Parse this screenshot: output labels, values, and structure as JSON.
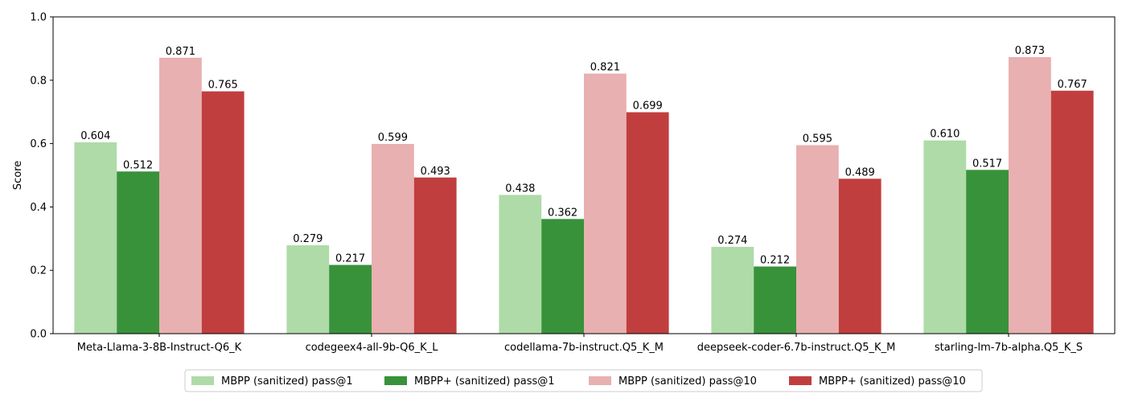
{
  "chart_data": {
    "type": "bar",
    "title": "",
    "xlabel": "",
    "ylabel": "Score",
    "ylim": [
      0,
      1.0
    ],
    "yticks": [
      "0.0",
      "0.2",
      "0.4",
      "0.6",
      "0.8",
      "1.0"
    ],
    "grid": false,
    "legend_position": "bottom-center",
    "categories": [
      "Meta-Llama-3-8B-Instruct-Q6_K",
      "codegeex4-all-9b-Q6_K_L",
      "codellama-7b-instruct.Q5_K_M",
      "deepseek-coder-6.7b-instruct.Q5_K_M",
      "starling-lm-7b-alpha.Q5_K_S"
    ],
    "series": [
      {
        "name": "MBPP (sanitized) pass@1",
        "color": "#aedba7",
        "values": [
          0.604,
          0.279,
          0.438,
          0.274,
          0.61
        ],
        "labels": [
          "0.604",
          "0.279",
          "0.438",
          "0.274",
          "0.610"
        ]
      },
      {
        "name": "MBPP+ (sanitized) pass@1",
        "color": "#38923a",
        "values": [
          0.512,
          0.217,
          0.362,
          0.212,
          0.517
        ],
        "labels": [
          "0.512",
          "0.217",
          "0.362",
          "0.212",
          "0.517"
        ]
      },
      {
        "name": "MBPP (sanitized) pass@10",
        "color": "#e8b0b0",
        "values": [
          0.871,
          0.599,
          0.821,
          0.595,
          0.873
        ],
        "labels": [
          "0.871",
          "0.599",
          "0.821",
          "0.595",
          "0.873"
        ]
      },
      {
        "name": "MBPP+ (sanitized) pass@10",
        "color": "#c13e3e",
        "values": [
          0.765,
          0.493,
          0.699,
          0.489,
          0.767
        ],
        "labels": [
          "0.765",
          "0.493",
          "0.699",
          "0.489",
          "0.767"
        ]
      }
    ]
  }
}
